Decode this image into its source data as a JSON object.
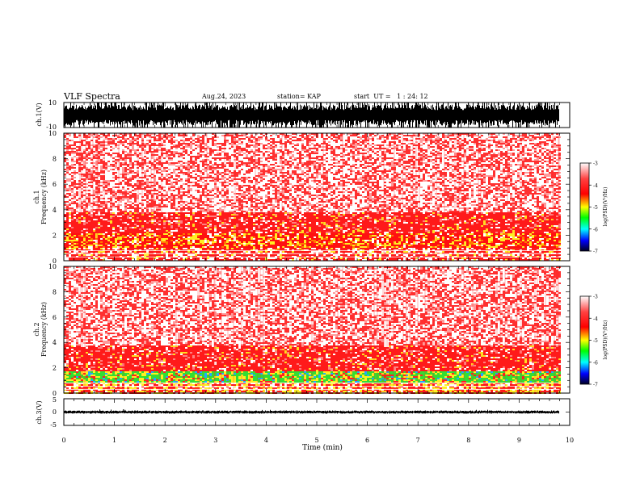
{
  "header": {
    "title": "VLF Spectra",
    "date": "Aug.24, 2023",
    "station": "station= KAP",
    "start": "start  UT =   1 : 24: 12"
  },
  "colors": {
    "spectrogram_low": "#ffffff",
    "spectrogram_mid": "#ff2a2a",
    "band_green": "#33dd33",
    "band_yellow": "#ffee22",
    "axis": "#000000"
  },
  "chart_data": [
    {
      "type": "line",
      "name": "ch1-waveform",
      "ylabel": "ch.1(V)",
      "ylim": [
        -10,
        10
      ],
      "yticks": [
        "10",
        "-10"
      ],
      "xlim": [
        0,
        10
      ],
      "xlabel": "",
      "fill": "dense black waveform spanning about ±7 V with frequent spikes to ±10 V"
    },
    {
      "type": "heatmap",
      "name": "ch1-spectrogram",
      "ylabel": "ch.1\nFrequency  (kHz)",
      "ylim": [
        0,
        10
      ],
      "yticks": [
        "0",
        "2",
        "4",
        "6",
        "8",
        "10"
      ],
      "xlim": [
        0,
        10
      ],
      "data_end_min": 9.8,
      "colorbar": {
        "label": "log(PSD)(V²/Hz)",
        "range": [
          -7,
          -3
        ],
        "ticks": [
          "-3",
          "-4",
          "-5",
          "-6",
          "-7"
        ],
        "colors": [
          "#ffffff",
          "#ff0000",
          "#ffff00",
          "#00ff00",
          "#00ffff",
          "#0000ff",
          "#000033"
        ]
      },
      "bands": [
        {
          "from_khz": 0,
          "to_khz": 1.0,
          "level": "strong red/white"
        },
        {
          "from_khz": 1.0,
          "to_khz": 2.2,
          "level": "red with yellow"
        },
        {
          "from_khz": 2.2,
          "to_khz": 3.8,
          "level": "dense red"
        },
        {
          "from_khz": 3.8,
          "to_khz": 10,
          "level": "speckled red"
        }
      ]
    },
    {
      "type": "heatmap",
      "name": "ch2-spectrogram",
      "ylabel": "ch.2\nFrequency  (kHz)",
      "ylim": [
        0,
        10
      ],
      "yticks": [
        "0",
        "2",
        "4",
        "6",
        "8",
        "10"
      ],
      "xlim": [
        0,
        10
      ],
      "data_end_min": 9.8,
      "colorbar": {
        "label": "log(PSD)(V²/Hz)",
        "range": [
          -7,
          -3
        ],
        "ticks": [
          "-3",
          "-4",
          "-5",
          "-6",
          "-7"
        ],
        "colors": [
          "#ffffff",
          "#ff0000",
          "#ffff00",
          "#00ff00",
          "#00ffff",
          "#0000ff",
          "#000033"
        ]
      },
      "bands": [
        {
          "from_khz": 0,
          "to_khz": 0.8,
          "level": "red/yellow"
        },
        {
          "from_khz": 0.8,
          "to_khz": 1.7,
          "level": "green/yellow"
        },
        {
          "from_khz": 1.7,
          "to_khz": 3.8,
          "level": "dense red"
        },
        {
          "from_khz": 3.8,
          "to_khz": 10,
          "level": "speckled red"
        }
      ]
    },
    {
      "type": "line",
      "name": "ch3-waveform",
      "ylabel": "ch.3(V)",
      "ylim": [
        -5,
        5
      ],
      "yticks": [
        "5",
        "0",
        "-5"
      ],
      "xlim": [
        0,
        10
      ],
      "xlabel": "Time  (min)",
      "xticks": [
        "0",
        "1",
        "2",
        "3",
        "4",
        "5",
        "6",
        "7",
        "8",
        "9",
        "10"
      ],
      "fill": "thin black band around -0.5 V to +0.5 V"
    }
  ]
}
